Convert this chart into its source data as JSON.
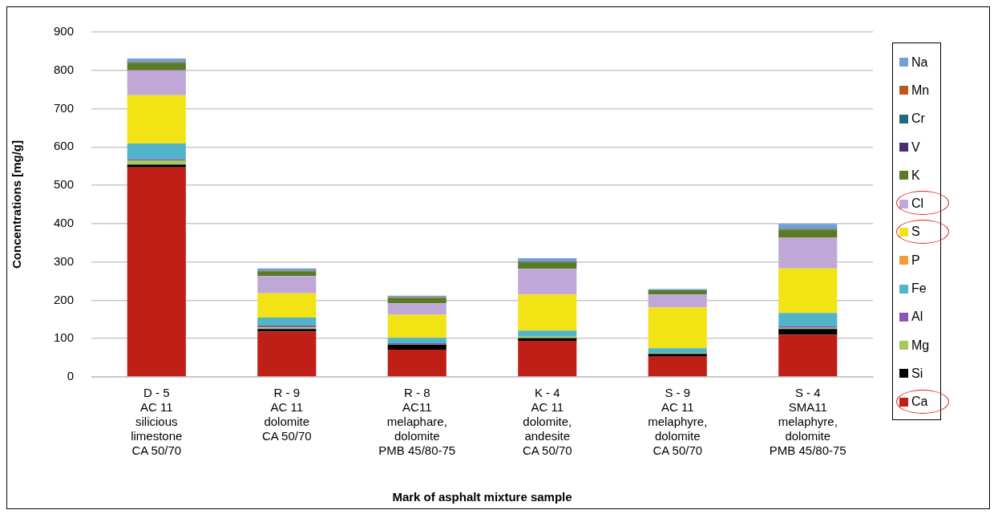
{
  "chart_data": {
    "type": "bar",
    "stacked": true,
    "xlabel": "Mark of asphalt mixture sample",
    "ylabel": "Concentrations [mg/g]",
    "categories": [
      "D - 5\nAC 11\nsilicious\nlimestone\nCA 50/70",
      "R - 9\nAC 11\ndolomite\nCA 50/70",
      "R - 8\nAC11\nmelaphare,\ndolomite\nPMB 45/80-75",
      "K - 4\nAC 11\ndolomite,\nandesite\nCA 50/70",
      "S - 9\nAC 11\nmelaphyre,\ndolomite\nCA 50/70",
      "S - 4\nSMA11\nmelaphyre,\ndolomite\nPMB 45/80-75"
    ],
    "ylim": [
      0,
      900
    ],
    "yticks": [
      0,
      100,
      200,
      300,
      400,
      500,
      600,
      700,
      800,
      900
    ],
    "grid": "y",
    "legend": "right",
    "series": [
      {
        "name": "Ca",
        "color": "#c01f18",
        "values": [
          547,
          118,
          71,
          94,
          53,
          110
        ]
      },
      {
        "name": "Si",
        "color": "#000000",
        "values": [
          7,
          7,
          13,
          7,
          7,
          15
        ]
      },
      {
        "name": "Mg",
        "color": "#a5c95a",
        "values": [
          11,
          4,
          1,
          4,
          2,
          3
        ]
      },
      {
        "name": "Al",
        "color": "#8b55b5",
        "values": [
          3,
          5,
          3,
          null,
          1,
          4
        ]
      },
      {
        "name": "Fe",
        "color": "#52b4c9",
        "values": [
          41,
          21,
          14,
          16,
          12,
          35
        ]
      },
      {
        "name": "P",
        "color": "#f79c3c",
        "values": [
          0,
          0,
          0,
          0,
          0,
          0
        ]
      },
      {
        "name": "S",
        "color": "#f2e414",
        "values": [
          126,
          63,
          60,
          94,
          106,
          116
        ]
      },
      {
        "name": "Cl",
        "color": "#bfa8d8",
        "values": [
          65,
          45,
          30,
          67,
          34,
          80
        ]
      },
      {
        "name": "K",
        "color": "#5b7a25",
        "values": [
          20,
          13,
          14,
          17,
          11,
          21
        ]
      },
      {
        "name": "V",
        "color": "#4b2d6b",
        "values": [
          1,
          0,
          0,
          0,
          0,
          0
        ]
      },
      {
        "name": "Cr",
        "color": "#1e6b7b",
        "values": [
          1,
          1,
          1,
          2,
          0,
          2
        ]
      },
      {
        "name": "Mn",
        "color": "#c0561a",
        "values": [
          1,
          1,
          1,
          1,
          null,
          1
        ]
      },
      {
        "name": "Na",
        "color": "#6e9fd6",
        "values": [
          8,
          5,
          4,
          8,
          3,
          12
        ]
      }
    ]
  }
}
